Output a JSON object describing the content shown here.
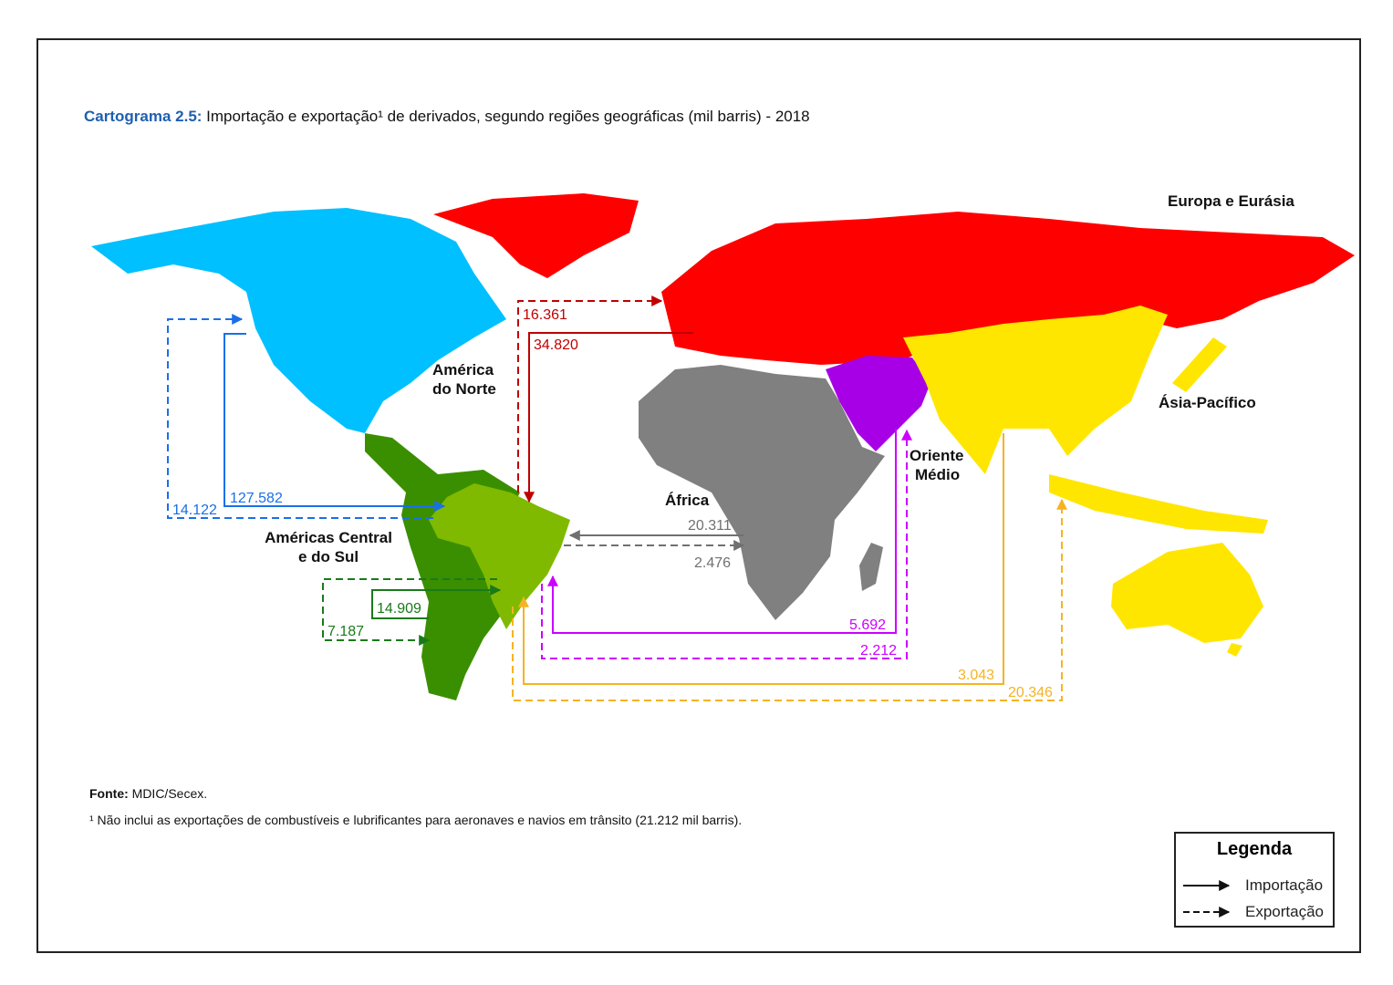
{
  "title": {
    "label": "Cartograma 2.5:",
    "text": "Importação e exportação¹ de derivados, segundo regiões geográficas (mil barris) - 2018"
  },
  "regions": {
    "north_america": {
      "name_line1": "América",
      "name_line2": "do Norte",
      "color": "#00c0ff"
    },
    "central_south_america": {
      "name_line1": "Américas Central",
      "name_line2": "e do Sul",
      "color": "#3a8f00",
      "brazil_color": "#7fba00"
    },
    "europe_eurasia": {
      "name": "Europa e Eurásia",
      "color": "#ff0000"
    },
    "africa": {
      "name": "África",
      "color": "#808080"
    },
    "middle_east": {
      "name_line1": "Oriente",
      "name_line2": "Médio",
      "color": "#a800e6"
    },
    "asia_pacific": {
      "name": "Ásia-Pacífico",
      "color": "#ffe600"
    }
  },
  "flows": {
    "north_america": {
      "import": "127.582",
      "export": "14.122",
      "color": "#1a6fe8"
    },
    "europe_eurasia": {
      "import": "34.820",
      "export": "16.361",
      "color": "#c00000"
    },
    "africa": {
      "import": "20.311",
      "export": "2.476",
      "color": "#707070"
    },
    "middle_east": {
      "import": "5.692",
      "export": "2.212",
      "color": "#cc00ff"
    },
    "asia_pacific": {
      "import": "3.043",
      "export": "20.346",
      "color": "#f5b323"
    },
    "central_south_america": {
      "import": "14.909",
      "export": "7.187",
      "color": "#1a7a1a"
    }
  },
  "source": {
    "label": "Fonte:",
    "text": "MDIC/Secex."
  },
  "footnote": "¹ Não inclui as exportações de combustíveis e lubrificantes para aeronaves e navios em trânsito (21.212 mil barris).",
  "legend": {
    "title": "Legenda",
    "import": "Importação",
    "export": "Exportação"
  }
}
